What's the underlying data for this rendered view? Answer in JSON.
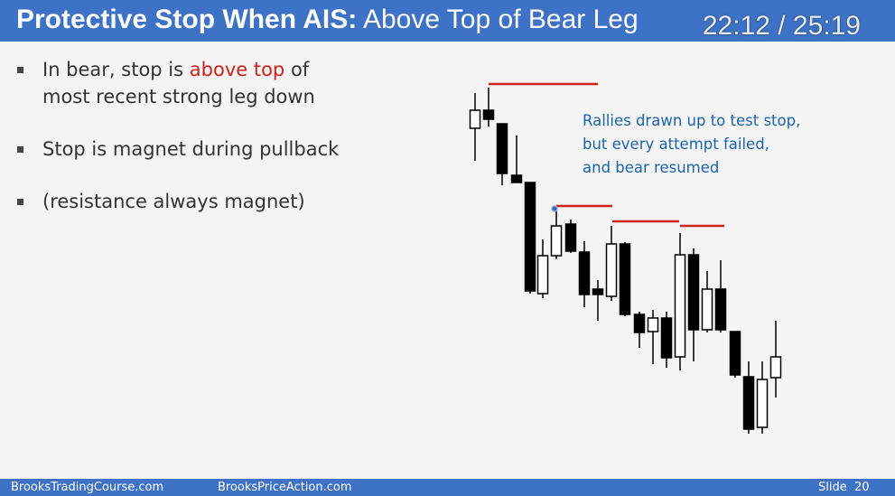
{
  "header": {
    "title_bold": "Protective Stop When AIS:",
    "title_rest": "Above Top of Bear Leg",
    "timestamp": "22:12 / 25:19"
  },
  "bullets": [
    {
      "parts": [
        "In bear, stop is",
        "above top",
        "of most recent strong leg down"
      ]
    },
    {
      "parts": [
        "Stop is magnet during pullback"
      ]
    },
    {
      "parts": [
        "(resistance always magnet)"
      ]
    }
  ],
  "annotation": {
    "lines": [
      "Rallies drawn up to test stop,",
      "but every attempt failed,",
      "and bear resumed"
    ]
  },
  "footer": {
    "left": "BrooksTradingCourse.com",
    "middle": "BrooksPriceAction.com",
    "slide": "Slide  20"
  }
}
